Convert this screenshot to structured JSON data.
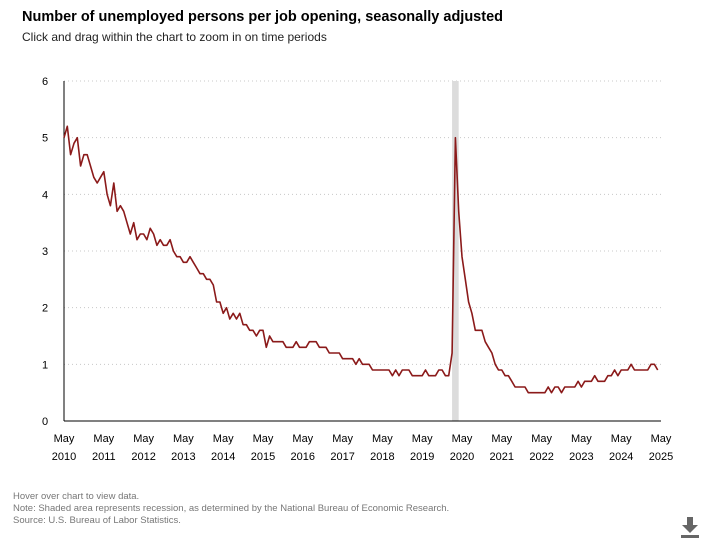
{
  "title": "Number of unemployed persons per job opening, seasonally adjusted",
  "subtitle": "Click and drag within the chart to zoom in on time periods",
  "notes": {
    "hover": "Hover over chart to view data.",
    "note": "Note: Shaded area represents recession, as determined by the National Bureau of Economic Research.",
    "source": "Source: U.S. Bureau of Labor Statistics."
  },
  "download_icon": "download-icon",
  "colors": {
    "line": "#8b1a1a",
    "recession": "#dcdcdc",
    "grid": "#c8c8c8",
    "axis": "#000000"
  },
  "chart_data": {
    "type": "line",
    "xlabel": "",
    "ylabel": "",
    "ylim": [
      0,
      6
    ],
    "yticks": [
      0,
      1,
      2,
      3,
      4,
      5,
      6
    ],
    "xlim": [
      "2010-05",
      "2025-05"
    ],
    "xticks": [
      {
        "m": "May",
        "y": "2010",
        "date": "2010-05"
      },
      {
        "m": "May",
        "y": "2011",
        "date": "2011-05"
      },
      {
        "m": "May",
        "y": "2012",
        "date": "2012-05"
      },
      {
        "m": "May",
        "y": "2013",
        "date": "2013-05"
      },
      {
        "m": "May",
        "y": "2014",
        "date": "2014-05"
      },
      {
        "m": "May",
        "y": "2015",
        "date": "2015-05"
      },
      {
        "m": "May",
        "y": "2016",
        "date": "2016-05"
      },
      {
        "m": "May",
        "y": "2017",
        "date": "2017-05"
      },
      {
        "m": "May",
        "y": "2018",
        "date": "2018-05"
      },
      {
        "m": "May",
        "y": "2019",
        "date": "2019-05"
      },
      {
        "m": "May",
        "y": "2020",
        "date": "2020-05"
      },
      {
        "m": "May",
        "y": "2021",
        "date": "2021-05"
      },
      {
        "m": "May",
        "y": "2022",
        "date": "2022-05"
      },
      {
        "m": "May",
        "y": "2023",
        "date": "2023-05"
      },
      {
        "m": "May",
        "y": "2024",
        "date": "2024-05"
      },
      {
        "m": "May",
        "y": "2025",
        "date": "2025-05"
      }
    ],
    "grid": "horizontal dotted",
    "recession": {
      "start": "2020-02",
      "end": "2020-04"
    },
    "series": [
      {
        "start": "2010-05",
        "frequency": "monthly",
        "values": [
          5.0,
          5.2,
          4.7,
          4.9,
          5.0,
          4.5,
          4.7,
          4.7,
          4.5,
          4.3,
          4.2,
          4.3,
          4.4,
          4.0,
          3.8,
          4.2,
          3.7,
          3.8,
          3.7,
          3.5,
          3.3,
          3.5,
          3.2,
          3.3,
          3.3,
          3.2,
          3.4,
          3.3,
          3.1,
          3.2,
          3.1,
          3.1,
          3.2,
          3.0,
          2.9,
          2.9,
          2.8,
          2.8,
          2.9,
          2.8,
          2.7,
          2.6,
          2.6,
          2.5,
          2.5,
          2.4,
          2.1,
          2.1,
          1.9,
          2.0,
          1.8,
          1.9,
          1.8,
          1.9,
          1.7,
          1.7,
          1.6,
          1.6,
          1.5,
          1.6,
          1.6,
          1.3,
          1.5,
          1.4,
          1.4,
          1.4,
          1.4,
          1.3,
          1.3,
          1.3,
          1.4,
          1.3,
          1.3,
          1.3,
          1.4,
          1.4,
          1.4,
          1.3,
          1.3,
          1.3,
          1.2,
          1.2,
          1.2,
          1.2,
          1.1,
          1.1,
          1.1,
          1.1,
          1.0,
          1.1,
          1.0,
          1.0,
          1.0,
          0.9,
          0.9,
          0.9,
          0.9,
          0.9,
          0.9,
          0.8,
          0.9,
          0.8,
          0.9,
          0.9,
          0.9,
          0.8,
          0.8,
          0.8,
          0.8,
          0.9,
          0.8,
          0.8,
          0.8,
          0.9,
          0.9,
          0.8,
          0.8,
          1.2,
          5.0,
          3.7,
          2.9,
          2.5,
          2.1,
          1.9,
          1.6,
          1.6,
          1.6,
          1.4,
          1.3,
          1.2,
          1.0,
          0.9,
          0.9,
          0.8,
          0.8,
          0.7,
          0.6,
          0.6,
          0.6,
          0.6,
          0.5,
          0.5,
          0.5,
          0.5,
          0.5,
          0.5,
          0.6,
          0.5,
          0.6,
          0.6,
          0.5,
          0.6,
          0.6,
          0.6,
          0.6,
          0.7,
          0.6,
          0.7,
          0.7,
          0.7,
          0.8,
          0.7,
          0.7,
          0.7,
          0.8,
          0.8,
          0.9,
          0.8,
          0.9,
          0.9,
          0.9,
          1.0,
          0.9,
          0.9,
          0.9,
          0.9,
          0.9,
          1.0,
          1.0,
          0.9
        ]
      }
    ]
  }
}
